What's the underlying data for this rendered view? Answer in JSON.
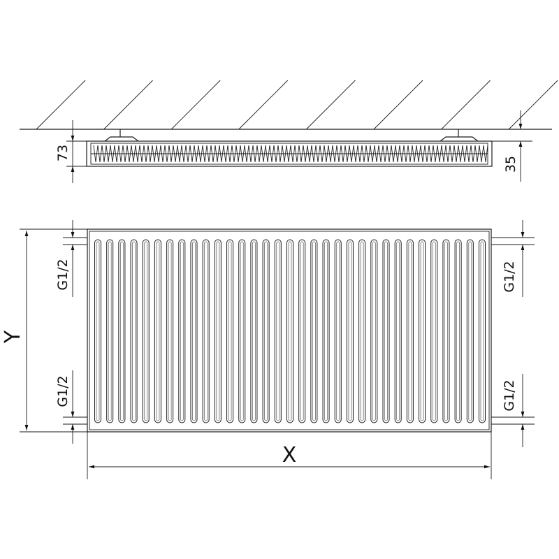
{
  "diagram": {
    "subject": "panel radiator dimension drawing",
    "line_color": "#1a1a1a",
    "side_view": {
      "height_label": "73",
      "wall_distance_label": "35"
    },
    "front_view": {
      "height_label": "Y",
      "width_label": "X",
      "connection_labels": {
        "left_top": "G1/2",
        "left_bottom": "G1/2",
        "right_top": "G1/2",
        "right_bottom": "G1/2"
      },
      "fin_count": 33
    }
  }
}
